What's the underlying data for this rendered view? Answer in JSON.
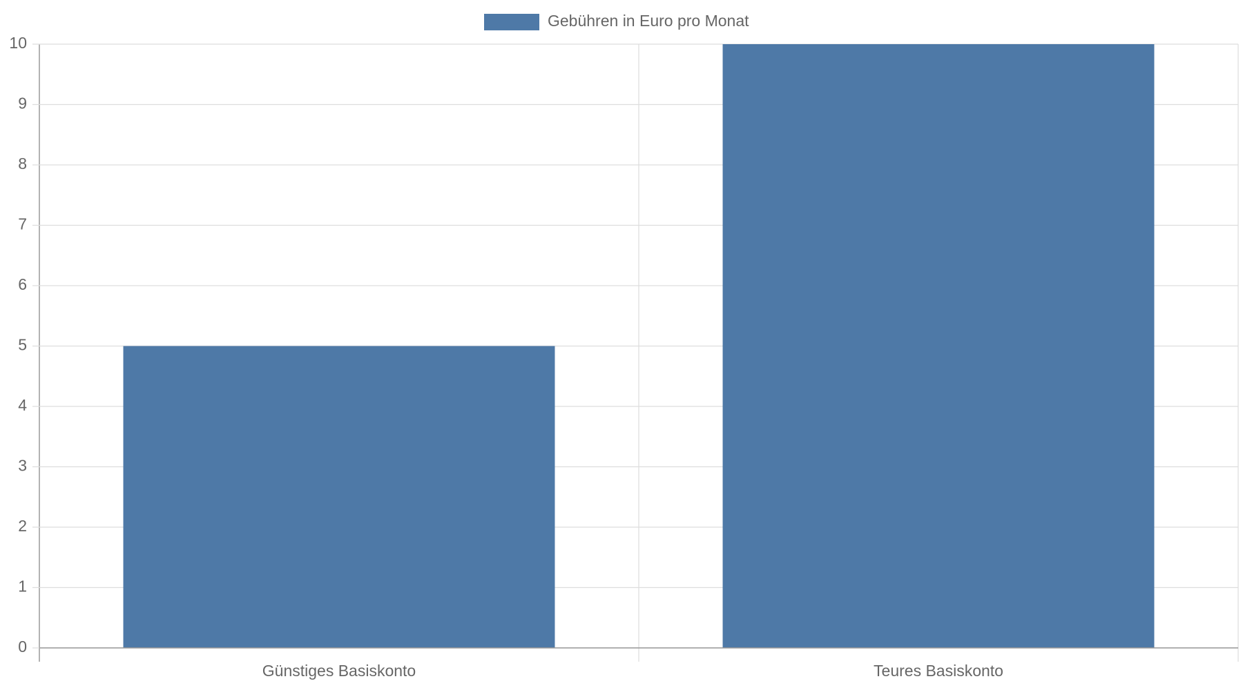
{
  "chart_data": {
    "type": "bar",
    "categories": [
      "Günstiges Basiskonto",
      "Teures Basiskonto"
    ],
    "series": [
      {
        "name": "Gebühren in Euro pro Monat",
        "color": "#4e79a7",
        "values": [
          5,
          10
        ]
      }
    ],
    "ylim": [
      0,
      10
    ],
    "yticks": [
      0,
      1,
      2,
      3,
      4,
      5,
      6,
      7,
      8,
      9,
      10
    ],
    "grid": true
  }
}
